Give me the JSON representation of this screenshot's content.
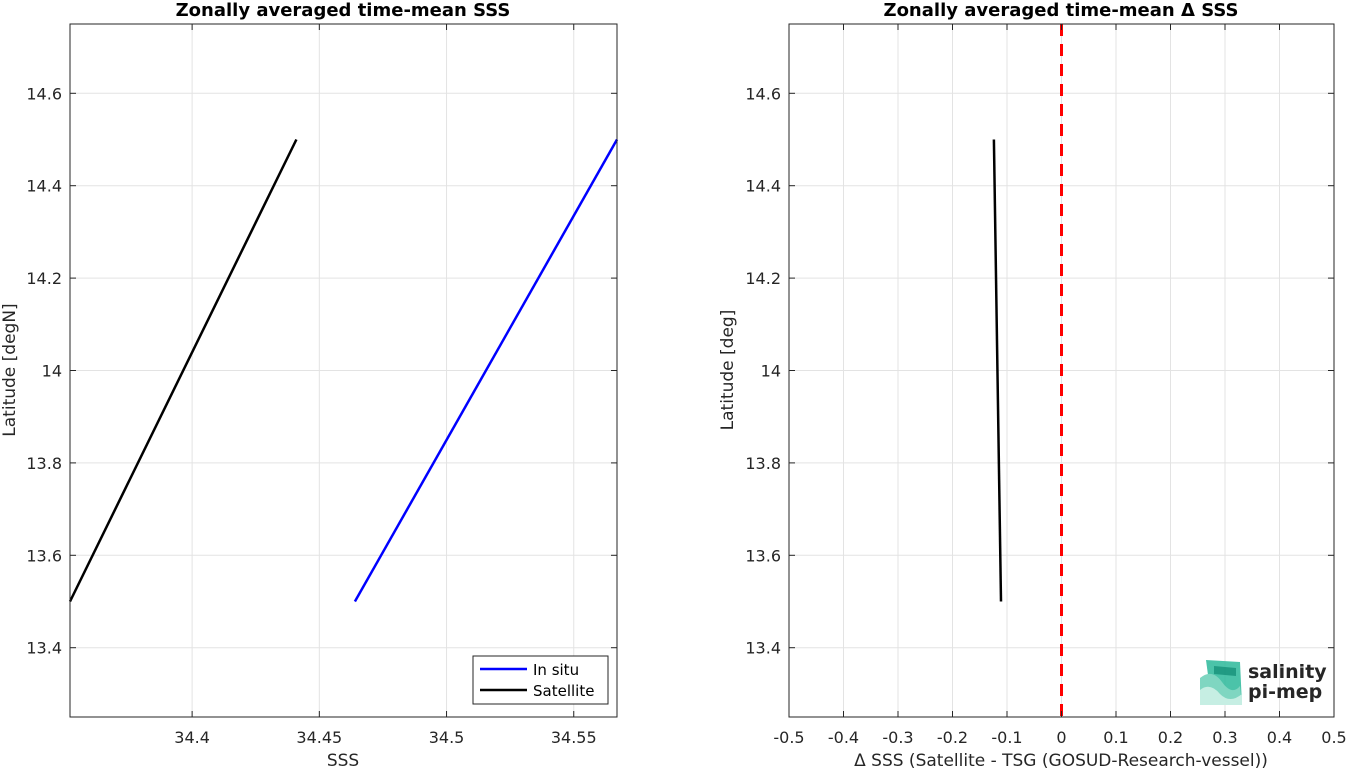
{
  "chart_data": [
    {
      "type": "line",
      "title": "Zonally averaged time-mean SSS",
      "xlabel": "SSS",
      "ylabel": "Latitude [degN]",
      "xlim": [
        34.352,
        34.567
      ],
      "ylim": [
        13.25,
        14.75
      ],
      "xticks": [
        "34.4",
        "34.45",
        "34.5",
        "34.55"
      ],
      "yticks": [
        "13.4",
        "13.6",
        "13.8",
        "14",
        "14.2",
        "14.4",
        "14.6"
      ],
      "xtick_values": [
        34.4,
        34.45,
        34.5,
        34.55
      ],
      "ytick_values": [
        13.4,
        13.6,
        13.8,
        14.0,
        14.2,
        14.4,
        14.6
      ],
      "grid": true,
      "legend_position": "bottom-right",
      "series": [
        {
          "name": "In situ",
          "color": "#0000ff",
          "x": [
            34.464,
            34.567
          ],
          "y": [
            13.5,
            14.5
          ]
        },
        {
          "name": "Satellite",
          "color": "#000000",
          "x": [
            34.352,
            34.441
          ],
          "y": [
            13.5,
            14.5
          ]
        }
      ]
    },
    {
      "type": "line",
      "title": "Zonally averaged time-mean Δ SSS",
      "xlabel": "Δ SSS (Satellite - TSG (GOSUD-Research-vessel))",
      "ylabel": "Latitude [deg]",
      "xlim": [
        -0.5,
        0.5
      ],
      "ylim": [
        13.25,
        14.75
      ],
      "xticks": [
        "-0.5",
        "-0.4",
        "-0.3",
        "-0.2",
        "-0.1",
        "0",
        "0.1",
        "0.2",
        "0.3",
        "0.4",
        "0.5"
      ],
      "yticks": [
        "13.4",
        "13.6",
        "13.8",
        "14",
        "14.2",
        "14.4",
        "14.6"
      ],
      "xtick_values": [
        -0.5,
        -0.4,
        -0.3,
        -0.2,
        -0.1,
        0,
        0.1,
        0.2,
        0.3,
        0.4,
        0.5
      ],
      "ytick_values": [
        13.4,
        13.6,
        13.8,
        14.0,
        14.2,
        14.4,
        14.6
      ],
      "grid": true,
      "reference_line": {
        "x": 0,
        "color": "#ff0000",
        "style": "dashed"
      },
      "series": [
        {
          "color": "#000000",
          "x": [
            -0.111,
            -0.124
          ],
          "y": [
            13.5,
            14.5
          ]
        }
      ]
    }
  ],
  "logo": {
    "line1": "salinity",
    "line2": "pi-mep",
    "color": "#1aa58c"
  }
}
